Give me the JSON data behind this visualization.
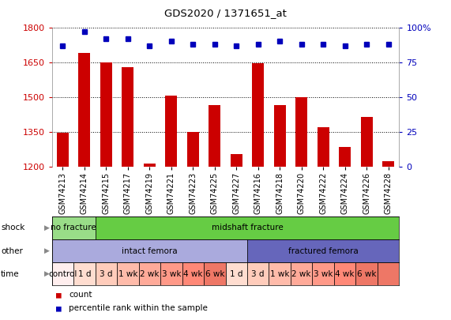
{
  "title": "GDS2020 / 1371651_at",
  "samples": [
    "GSM74213",
    "GSM74214",
    "GSM74215",
    "GSM74217",
    "GSM74219",
    "GSM74221",
    "GSM74223",
    "GSM74225",
    "GSM74227",
    "GSM74216",
    "GSM74218",
    "GSM74220",
    "GSM74222",
    "GSM74224",
    "GSM74226",
    "GSM74228"
  ],
  "bar_values": [
    1345,
    1690,
    1650,
    1630,
    1215,
    1505,
    1350,
    1465,
    1255,
    1645,
    1465,
    1500,
    1370,
    1285,
    1415,
    1225
  ],
  "percentile_values": [
    87,
    97,
    92,
    92,
    87,
    90,
    88,
    88,
    87,
    88,
    90,
    88,
    88,
    87,
    88,
    88
  ],
  "bar_color": "#cc0000",
  "percentile_color": "#0000bb",
  "ylim_left": [
    1200,
    1800
  ],
  "ylim_right": [
    0,
    100
  ],
  "yticks_left": [
    1200,
    1350,
    1500,
    1650,
    1800
  ],
  "yticks_right": [
    0,
    25,
    50,
    75,
    100
  ],
  "shock_labels": [
    {
      "text": "no fracture",
      "start": 0,
      "end": 2,
      "color": "#99dd88"
    },
    {
      "text": "midshaft fracture",
      "start": 2,
      "end": 16,
      "color": "#66cc44"
    }
  ],
  "other_labels": [
    {
      "text": "intact femora",
      "start": 0,
      "end": 9,
      "color": "#aaaadd"
    },
    {
      "text": "fractured femora",
      "start": 9,
      "end": 16,
      "color": "#6666bb"
    }
  ],
  "time_labels": [
    {
      "text": "control",
      "start": 0,
      "end": 1,
      "color": "#ffeeee"
    },
    {
      "text": "1 d",
      "start": 1,
      "end": 2,
      "color": "#ffddd0"
    },
    {
      "text": "3 d",
      "start": 2,
      "end": 3,
      "color": "#ffccbb"
    },
    {
      "text": "1 wk",
      "start": 3,
      "end": 4,
      "color": "#ffbbaa"
    },
    {
      "text": "2 wk",
      "start": 4,
      "end": 5,
      "color": "#ffaa99"
    },
    {
      "text": "3 wk",
      "start": 5,
      "end": 6,
      "color": "#ff9988"
    },
    {
      "text": "4 wk",
      "start": 6,
      "end": 7,
      "color": "#ff8877"
    },
    {
      "text": "6 wk",
      "start": 7,
      "end": 8,
      "color": "#ee7766"
    },
    {
      "text": "1 d",
      "start": 8,
      "end": 9,
      "color": "#ffddd0"
    },
    {
      "text": "3 d",
      "start": 9,
      "end": 10,
      "color": "#ffccbb"
    },
    {
      "text": "1 wk",
      "start": 10,
      "end": 11,
      "color": "#ffbbaa"
    },
    {
      "text": "2 wk",
      "start": 11,
      "end": 12,
      "color": "#ffaa99"
    },
    {
      "text": "3 wk",
      "start": 12,
      "end": 13,
      "color": "#ff9988"
    },
    {
      "text": "4 wk",
      "start": 13,
      "end": 14,
      "color": "#ff8877"
    },
    {
      "text": "6 wk",
      "start": 14,
      "end": 15,
      "color": "#ee7766"
    },
    {
      "text": "",
      "start": 15,
      "end": 16,
      "color": "#ee7766"
    }
  ],
  "row_labels": [
    "shock",
    "other",
    "time"
  ],
  "legend_items": [
    {
      "label": "count",
      "color": "#cc0000"
    },
    {
      "label": "percentile rank within the sample",
      "color": "#0000bb"
    }
  ],
  "bg_color": "#ffffff",
  "tick_color_left": "#cc0000",
  "tick_color_right": "#0000bb",
  "chart_bg": "#ffffff"
}
